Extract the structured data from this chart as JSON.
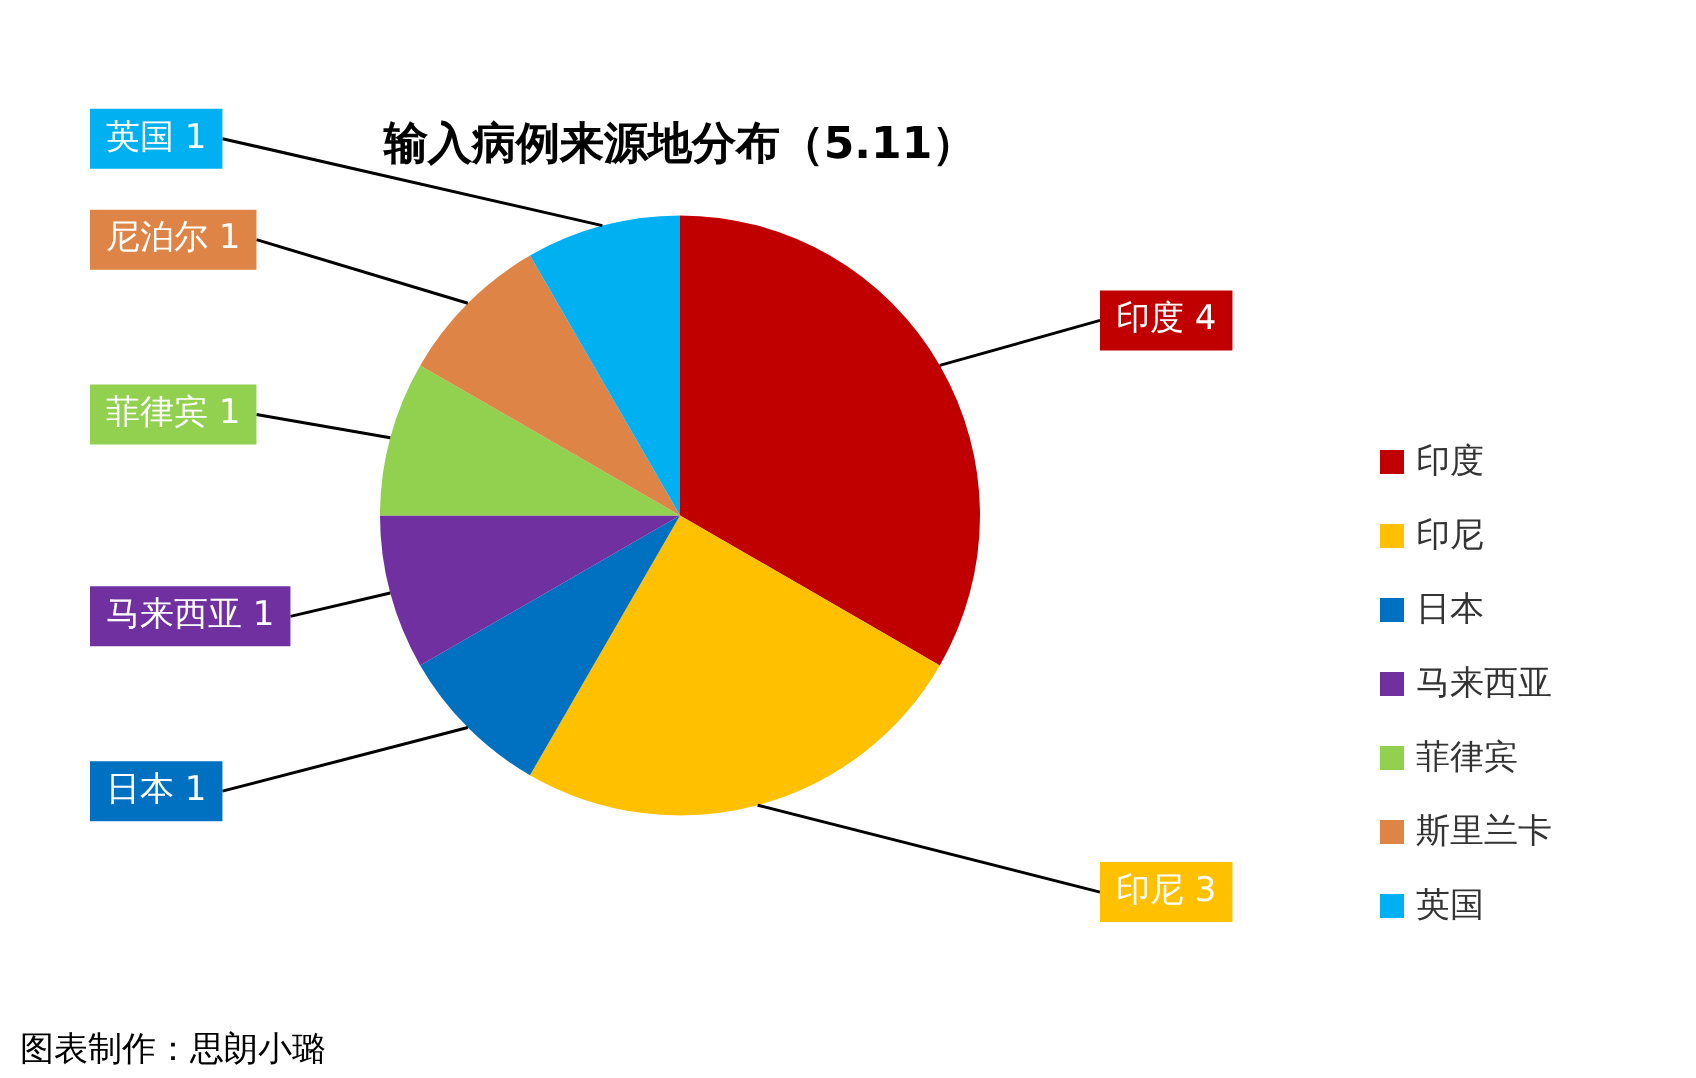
{
  "chart_data": {
    "type": "pie",
    "title": "输入病例来源地分布（5.11）",
    "categories": [
      "印度",
      "印尼",
      "日本",
      "马来西亚",
      "菲律宾",
      "斯里兰卡",
      "英国"
    ],
    "values": [
      4,
      3,
      1,
      1,
      1,
      1,
      1
    ],
    "colors": [
      "#c00000",
      "#ffc000",
      "#0070c0",
      "#7030a0",
      "#92d050",
      "#dd8446",
      "#00b0f0"
    ],
    "value_labels": [
      "印度 4",
      "印尼 3",
      "日本 1",
      "马来西亚 1",
      "菲律宾 1",
      "尼泊尔 1",
      "英国 1"
    ],
    "legend": "right",
    "annotations": [
      "图表制作：思朗小璐"
    ]
  }
}
